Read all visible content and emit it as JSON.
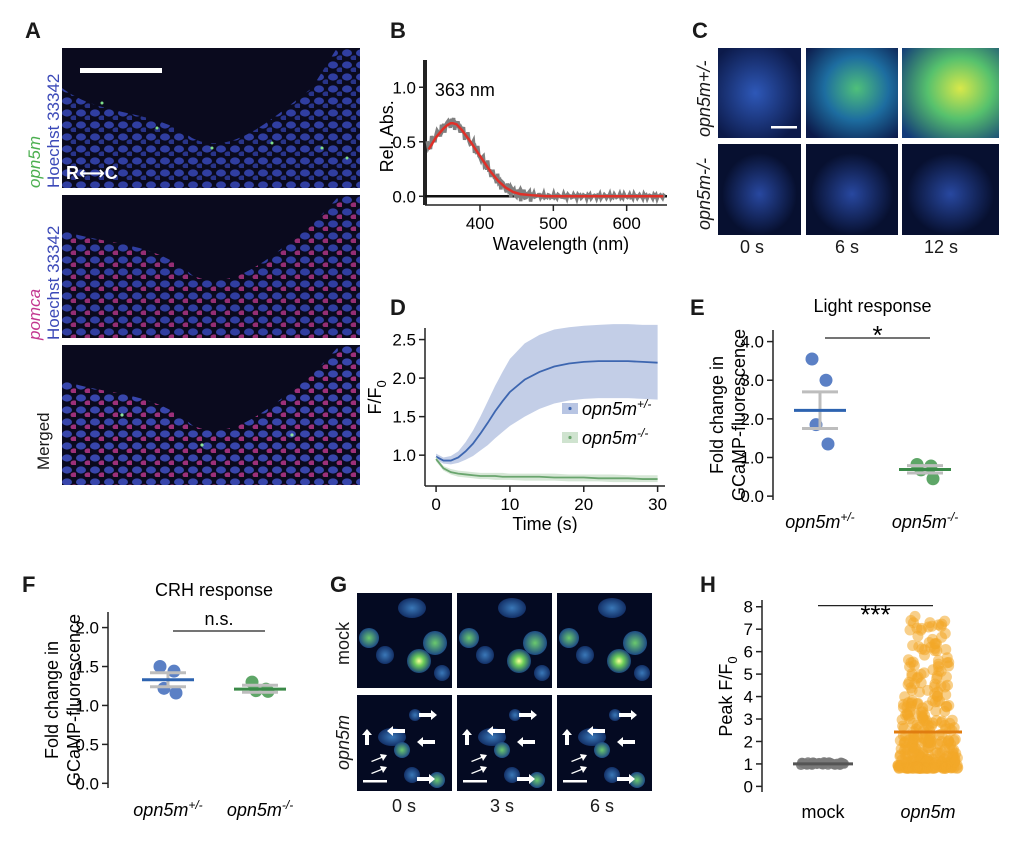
{
  "panels": {
    "A": {
      "label": "A",
      "top_stain": "opn5m",
      "top_stain2": "Hoechst 33342",
      "mid_stain": "pomca",
      "mid_stain2": "Hoechst 33342",
      "bottom_label": "Merged",
      "axis_label": "R⟷C",
      "axis_r": "R",
      "axis_c": "C",
      "colors": {
        "opn5m": "#4caf50",
        "pomca": "#c2368f",
        "hoechst": "#3b49b8"
      }
    },
    "B": {
      "label": "B"
    },
    "C": {
      "label": "C",
      "row1": "opn5m+/-",
      "row2": "opn5m-/-",
      "times": [
        "0 s",
        "6 s",
        "12 s"
      ]
    },
    "D": {
      "label": "D"
    },
    "E": {
      "label": "E"
    },
    "F": {
      "label": "F"
    },
    "G": {
      "label": "G",
      "row1": "mock",
      "row2": "opn5m",
      "times": [
        "0 s",
        "3 s",
        "6 s"
      ]
    },
    "H": {
      "label": "H"
    }
  },
  "chart_data": [
    {
      "id": "B",
      "type": "line",
      "xlabel": "Wavelength (nm)",
      "ylabel": "Rel. Abs.",
      "xlim": [
        325,
        655
      ],
      "ylim": [
        -0.08,
        1.25
      ],
      "xticks": [
        400,
        500,
        600
      ],
      "yticks": [
        0.0,
        0.5,
        1.0
      ],
      "xtick_labels": [
        "400",
        "500",
        "600"
      ],
      "ytick_labels": [
        "0.0",
        "0.5",
        "1.0"
      ],
      "annotation": "363 nm",
      "series": [
        {
          "kind": "raw",
          "color": "#7f7f7f",
          "x": [
            330,
            340,
            350,
            355,
            360,
            363,
            368,
            375,
            385,
            395,
            405,
            415,
            425,
            435,
            445,
            455,
            470,
            490,
            520,
            560,
            600,
            650
          ],
          "y": [
            0.46,
            0.56,
            0.63,
            0.66,
            0.68,
            0.68,
            0.66,
            0.61,
            0.52,
            0.42,
            0.32,
            0.22,
            0.14,
            0.08,
            0.04,
            0.02,
            0.01,
            0.0,
            0.0,
            0.0,
            0.0,
            0.0
          ]
        },
        {
          "kind": "fit",
          "color": "#e03028",
          "x": [
            330,
            340,
            350,
            355,
            360,
            363,
            368,
            375,
            385,
            395,
            405,
            415,
            425,
            435,
            445,
            455,
            470,
            490,
            520,
            560,
            600,
            650
          ],
          "y": [
            0.43,
            0.54,
            0.62,
            0.65,
            0.67,
            0.67,
            0.66,
            0.61,
            0.52,
            0.42,
            0.32,
            0.22,
            0.14,
            0.08,
            0.04,
            0.02,
            0.01,
            0.0,
            0.0,
            0.0,
            0.0,
            0.0
          ]
        }
      ]
    },
    {
      "id": "D",
      "type": "line",
      "xlabel": "Time (s)",
      "ylabel": "F/F0",
      "xlim": [
        -1.5,
        31
      ],
      "ylim": [
        0.6,
        2.65
      ],
      "xticks": [
        0,
        10,
        20,
        30
      ],
      "yticks": [
        1.0,
        1.5,
        2.0,
        2.5
      ],
      "xtick_labels": [
        "0",
        "10",
        "20",
        "30"
      ],
      "ytick_labels": [
        "1.0",
        "1.5",
        "2.0",
        "2.5"
      ],
      "legend": "center-right",
      "series": [
        {
          "name": "opn5m+/-",
          "color": "#3d66b0",
          "band": "#b8c5e3",
          "x": [
            0,
            1,
            2,
            3,
            4,
            5,
            6,
            7,
            8,
            9,
            10,
            12,
            14,
            16,
            18,
            20,
            22,
            24,
            26,
            28,
            30
          ],
          "y": [
            0.98,
            0.93,
            0.93,
            0.97,
            1.05,
            1.15,
            1.28,
            1.42,
            1.57,
            1.7,
            1.82,
            1.98,
            2.08,
            2.15,
            2.19,
            2.21,
            2.22,
            2.22,
            2.22,
            2.21,
            2.2
          ],
          "lo": [
            0.94,
            0.89,
            0.88,
            0.9,
            0.94,
            0.99,
            1.06,
            1.13,
            1.22,
            1.3,
            1.38,
            1.5,
            1.6,
            1.67,
            1.71,
            1.73,
            1.74,
            1.74,
            1.74,
            1.73,
            1.72
          ],
          "hi": [
            1.02,
            0.97,
            0.99,
            1.05,
            1.17,
            1.32,
            1.5,
            1.7,
            1.9,
            2.08,
            2.25,
            2.45,
            2.56,
            2.63,
            2.66,
            2.68,
            2.69,
            2.7,
            2.7,
            2.69,
            2.69
          ]
        },
        {
          "name": "opn5m-/-",
          "color": "#6aa56e",
          "band": "#cfe3cf",
          "x": [
            0,
            1,
            2,
            3,
            4,
            5,
            6,
            7,
            8,
            9,
            10,
            12,
            14,
            16,
            18,
            20,
            22,
            24,
            26,
            28,
            30
          ],
          "y": [
            0.95,
            0.83,
            0.78,
            0.76,
            0.75,
            0.74,
            0.73,
            0.73,
            0.73,
            0.72,
            0.72,
            0.72,
            0.72,
            0.71,
            0.71,
            0.71,
            0.7,
            0.7,
            0.7,
            0.69,
            0.69
          ],
          "lo": [
            0.92,
            0.8,
            0.75,
            0.72,
            0.71,
            0.7,
            0.69,
            0.69,
            0.68,
            0.68,
            0.68,
            0.67,
            0.67,
            0.67,
            0.66,
            0.66,
            0.66,
            0.65,
            0.65,
            0.65,
            0.65
          ],
          "hi": [
            0.98,
            0.86,
            0.82,
            0.8,
            0.79,
            0.78,
            0.77,
            0.77,
            0.77,
            0.77,
            0.76,
            0.76,
            0.76,
            0.76,
            0.75,
            0.75,
            0.75,
            0.75,
            0.74,
            0.74,
            0.74
          ]
        }
      ]
    },
    {
      "id": "E",
      "type": "scatter",
      "title": "Light response",
      "ylabel": "Fold change in GCaMP-fluorescence",
      "categories": [
        "opn5m+/-",
        "opn5m-/-"
      ],
      "ylim": [
        -0.1,
        4.3
      ],
      "yticks": [
        0.0,
        1.0,
        2.0,
        3.0,
        4.0
      ],
      "ytick_labels": [
        "0.0",
        "1.0",
        "2.0",
        "3.0",
        "4.0"
      ],
      "significance": "*",
      "series": [
        {
          "name": "opn5m+/-",
          "color": "#5b80c5",
          "points": [
            3.55,
            3.0,
            1.85,
            1.35
          ],
          "mean": 2.22,
          "sem_lo": 1.75,
          "sem_hi": 2.7
        },
        {
          "name": "opn5m-/-",
          "color": "#5ea667",
          "points": [
            0.82,
            0.78,
            0.68,
            0.45
          ],
          "mean": 0.69,
          "sem_lo": 0.6,
          "sem_hi": 0.79
        }
      ]
    },
    {
      "id": "F",
      "type": "scatter",
      "title": "CRH response",
      "ylabel": "Fold change in GCaMP-fluorescence",
      "categories": [
        "opn5m+/-",
        "opn5m-/-"
      ],
      "ylim": [
        -0.06,
        2.2
      ],
      "yticks": [
        0.0,
        0.5,
        1.0,
        1.5,
        2.0
      ],
      "ytick_labels": [
        "0.0",
        "0.5",
        "1.0",
        "1.5",
        "2.0"
      ],
      "significance": "n.s.",
      "series": [
        {
          "name": "opn5m+/-",
          "color": "#5b80c5",
          "points": [
            1.5,
            1.44,
            1.22,
            1.16
          ],
          "mean": 1.33,
          "sem_lo": 1.24,
          "sem_hi": 1.42
        },
        {
          "name": "opn5m-/-",
          "color": "#5ea667",
          "points": [
            1.3,
            1.21,
            1.19,
            1.18
          ],
          "mean": 1.21,
          "sem_lo": 1.17,
          "sem_hi": 1.26
        }
      ]
    },
    {
      "id": "H",
      "type": "scatter",
      "ylabel": "Peak F/F0",
      "categories": [
        "mock",
        "opn5m"
      ],
      "ylim": [
        -0.25,
        8.3
      ],
      "yticks": [
        0,
        1,
        2,
        3,
        4,
        5,
        6,
        7,
        8
      ],
      "ytick_labels": [
        "0",
        "1",
        "2",
        "3",
        "4",
        "5",
        "6",
        "7",
        "8"
      ],
      "significance": "***",
      "series": [
        {
          "name": "mock",
          "color": "#7a7a7a",
          "mean": 1.0,
          "range": [
            0.95,
            1.08
          ]
        },
        {
          "name": "opn5m",
          "color": "#f2a828",
          "mean": 2.42,
          "max": 7.7
        }
      ]
    }
  ]
}
